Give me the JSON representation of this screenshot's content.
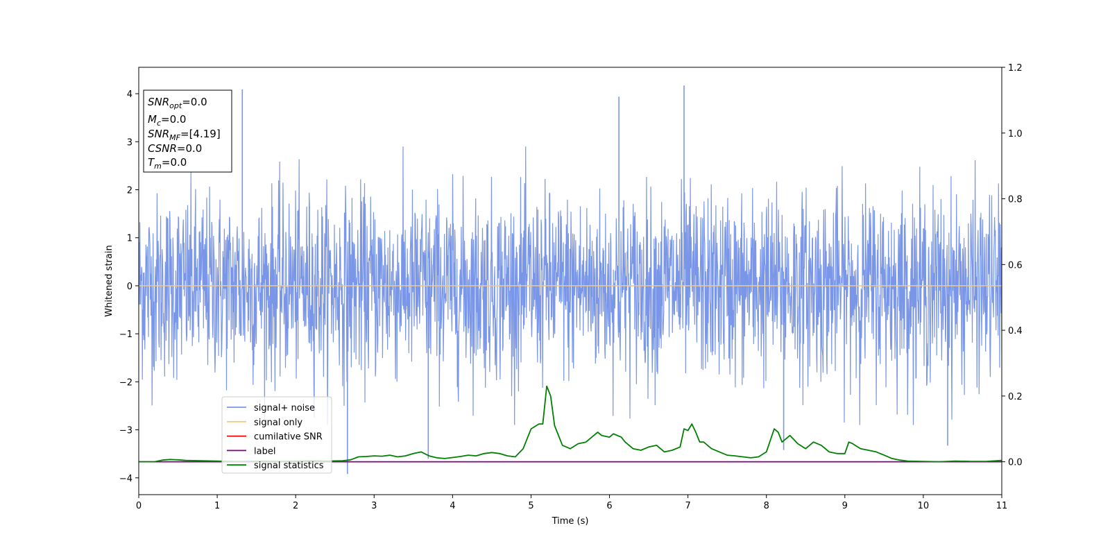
{
  "chart_data": {
    "type": "line",
    "xlabel": "Time (s)",
    "ylabel": "Whitened strain",
    "xlim": [
      0,
      11
    ],
    "ylim": [
      -4.35,
      4.55
    ],
    "y2lim": [
      -0.1,
      1.2
    ],
    "x_ticks": [
      "0",
      "1",
      "2",
      "3",
      "4",
      "5",
      "6",
      "7",
      "8",
      "9",
      "10",
      "11"
    ],
    "y_ticks": [
      "−4",
      "−3",
      "−2",
      "−1",
      "0",
      "1",
      "2",
      "3",
      "4"
    ],
    "y2_ticks": [
      "0.0",
      "0.2",
      "0.4",
      "0.6",
      "0.8",
      "1.0",
      "1.2"
    ],
    "x_tick_values": [
      0,
      1,
      2,
      3,
      4,
      5,
      6,
      7,
      8,
      9,
      10,
      11
    ],
    "y_tick_values": [
      -4,
      -3,
      -2,
      -1,
      0,
      1,
      2,
      3,
      4
    ],
    "y2_tick_values": [
      0.0,
      0.2,
      0.4,
      0.6,
      0.8,
      1.0,
      1.2
    ],
    "legend_location": "lower-left",
    "series": [
      {
        "name": "signal+ noise",
        "color": "#7a96e8",
        "axis": "left",
        "description_values": "whitened noise, roughly uniform amplitude with peaks near ±2.5",
        "peaks": [
          {
            "x": 1.32,
            "y": 4.09
          },
          {
            "x": 6.12,
            "y": 3.94
          },
          {
            "x": 6.95,
            "y": 4.17
          },
          {
            "x": 2.66,
            "y": -3.92
          },
          {
            "x": 3.69,
            "y": -3.6
          },
          {
            "x": 8.22,
            "y": -3.42
          },
          {
            "x": 10.31,
            "y": -3.33
          }
        ]
      },
      {
        "name": "signal only",
        "color": "#f4c97a",
        "axis": "left",
        "x": [
          0,
          11
        ],
        "y": [
          0,
          0
        ]
      },
      {
        "name": "cumilative SNR",
        "color": "#ff0000",
        "axis": "left",
        "x": [],
        "y": []
      },
      {
        "name": "label",
        "color": "#800080",
        "axis": "right",
        "x": [
          0,
          11
        ],
        "y": [
          0,
          0
        ]
      },
      {
        "name": "signal statistics",
        "color": "#008000",
        "axis": "right",
        "x": [
          0,
          0.2,
          0.3,
          0.4,
          0.5,
          0.6,
          0.8,
          1.0,
          1.2,
          1.4,
          1.6,
          1.8,
          2.0,
          2.2,
          2.4,
          2.6,
          2.7,
          2.8,
          2.9,
          3.0,
          3.1,
          3.2,
          3.3,
          3.4,
          3.5,
          3.6,
          3.7,
          3.8,
          3.9,
          4.0,
          4.1,
          4.2,
          4.3,
          4.4,
          4.5,
          4.6,
          4.7,
          4.8,
          4.9,
          5.0,
          5.1,
          5.15,
          5.2,
          5.25,
          5.3,
          5.4,
          5.5,
          5.6,
          5.7,
          5.8,
          5.85,
          5.9,
          6.0,
          6.05,
          6.15,
          6.2,
          6.3,
          6.4,
          6.5,
          6.6,
          6.7,
          6.8,
          6.9,
          6.95,
          7.0,
          7.05,
          7.1,
          7.15,
          7.2,
          7.3,
          7.4,
          7.5,
          7.6,
          7.7,
          7.8,
          7.9,
          8.0,
          8.1,
          8.15,
          8.2,
          8.3,
          8.4,
          8.5,
          8.6,
          8.7,
          8.8,
          8.9,
          9.0,
          9.05,
          9.1,
          9.2,
          9.3,
          9.4,
          9.5,
          9.6,
          9.7,
          9.8,
          10.0,
          10.2,
          10.4,
          10.6,
          10.8,
          11.0
        ],
        "y": [
          0.0,
          0.0,
          0.005,
          0.007,
          0.006,
          0.004,
          0.003,
          0.002,
          0.001,
          0.001,
          0.002,
          0.001,
          0.002,
          0.003,
          0.002,
          0.003,
          0.006,
          0.015,
          0.016,
          0.018,
          0.017,
          0.02,
          0.015,
          0.018,
          0.025,
          0.03,
          0.018,
          0.012,
          0.01,
          0.013,
          0.016,
          0.02,
          0.018,
          0.025,
          0.028,
          0.025,
          0.018,
          0.015,
          0.04,
          0.1,
          0.115,
          0.115,
          0.23,
          0.2,
          0.11,
          0.05,
          0.04,
          0.055,
          0.06,
          0.08,
          0.09,
          0.08,
          0.075,
          0.085,
          0.075,
          0.06,
          0.04,
          0.035,
          0.045,
          0.05,
          0.03,
          0.035,
          0.045,
          0.1,
          0.095,
          0.115,
          0.09,
          0.06,
          0.06,
          0.04,
          0.03,
          0.02,
          0.018,
          0.015,
          0.012,
          0.015,
          0.03,
          0.1,
          0.09,
          0.06,
          0.08,
          0.055,
          0.04,
          0.06,
          0.05,
          0.03,
          0.025,
          0.025,
          0.06,
          0.055,
          0.04,
          0.035,
          0.03,
          0.02,
          0.01,
          0.005,
          0.002,
          0.001,
          0.0,
          0.002,
          0.001,
          0.001,
          0.004
        ]
      }
    ],
    "annotation": {
      "lines": [
        {
          "main": "SNR",
          "sub": "opt",
          "rest": "=0.0"
        },
        {
          "main": "M",
          "sub": "c",
          "rest": "=0.0"
        },
        {
          "main": "SNR",
          "sub": "MF",
          "rest": "=[4.19]"
        },
        {
          "main": "CSNR",
          "sub": "",
          "rest": "=0.0"
        },
        {
          "main": "T",
          "sub": "m",
          "rest": "=0.0"
        }
      ]
    }
  }
}
